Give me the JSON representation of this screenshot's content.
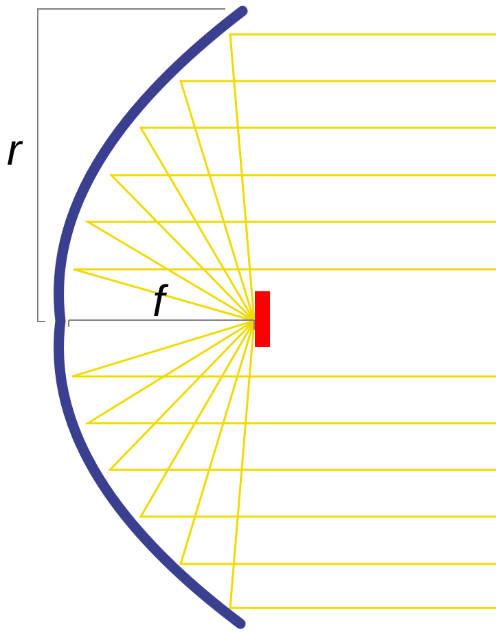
{
  "labels": {
    "radius": "r",
    "focal_length": "f"
  }
}
